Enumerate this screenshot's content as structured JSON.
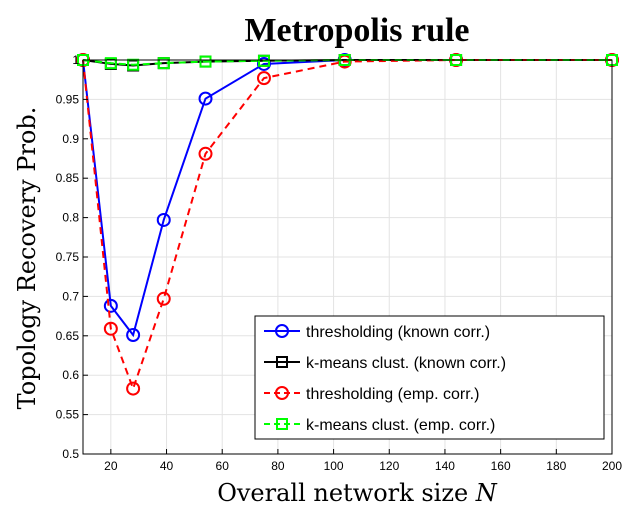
{
  "chart_data": {
    "type": "line",
    "title": "Metropolis rule",
    "xlabel": "Overall network size N",
    "xlabel_prefix": "Overall network size ",
    "xlabel_var": "N",
    "ylabel": "Topology Recovery Prob.",
    "xlim": [
      10,
      200
    ],
    "ylim": [
      0.5,
      1.0
    ],
    "xticks": [
      20,
      40,
      60,
      80,
      100,
      120,
      140,
      160,
      180,
      200
    ],
    "yticks": [
      0.5,
      0.55,
      0.6,
      0.65,
      0.7,
      0.75,
      0.8,
      0.85,
      0.9,
      0.95,
      1
    ],
    "x": [
      10,
      20,
      28,
      39,
      54,
      75,
      104,
      144,
      200
    ],
    "grid": true,
    "legend_position": "bottom-right",
    "series": [
      {
        "name": "thresholding (known corr.)",
        "values": [
          1.0,
          0.688,
          0.651,
          0.797,
          0.951,
          0.995,
          1.0,
          1.0,
          1.0
        ],
        "color": "#0000ff",
        "dash": "solid",
        "marker": "circle"
      },
      {
        "name": "k-means clust. (known corr.)",
        "values": [
          1.0,
          0.995,
          0.993,
          0.996,
          0.998,
          0.999,
          1.0,
          1.0,
          1.0
        ],
        "color": "#000000",
        "dash": "solid",
        "marker": "square"
      },
      {
        "name": "thresholding (emp. corr.)",
        "values": [
          1.0,
          0.659,
          0.583,
          0.697,
          0.881,
          0.977,
          0.998,
          1.0,
          1.0
        ],
        "color": "#ff0000",
        "dash": "dashed",
        "marker": "circle"
      },
      {
        "name": "k-means clust. (emp. corr.)",
        "values": [
          1.0,
          0.996,
          0.994,
          0.996,
          0.998,
          0.999,
          1.0,
          1.0,
          1.0
        ],
        "color": "#00ff00",
        "dash": "dashed",
        "marker": "square"
      }
    ]
  }
}
